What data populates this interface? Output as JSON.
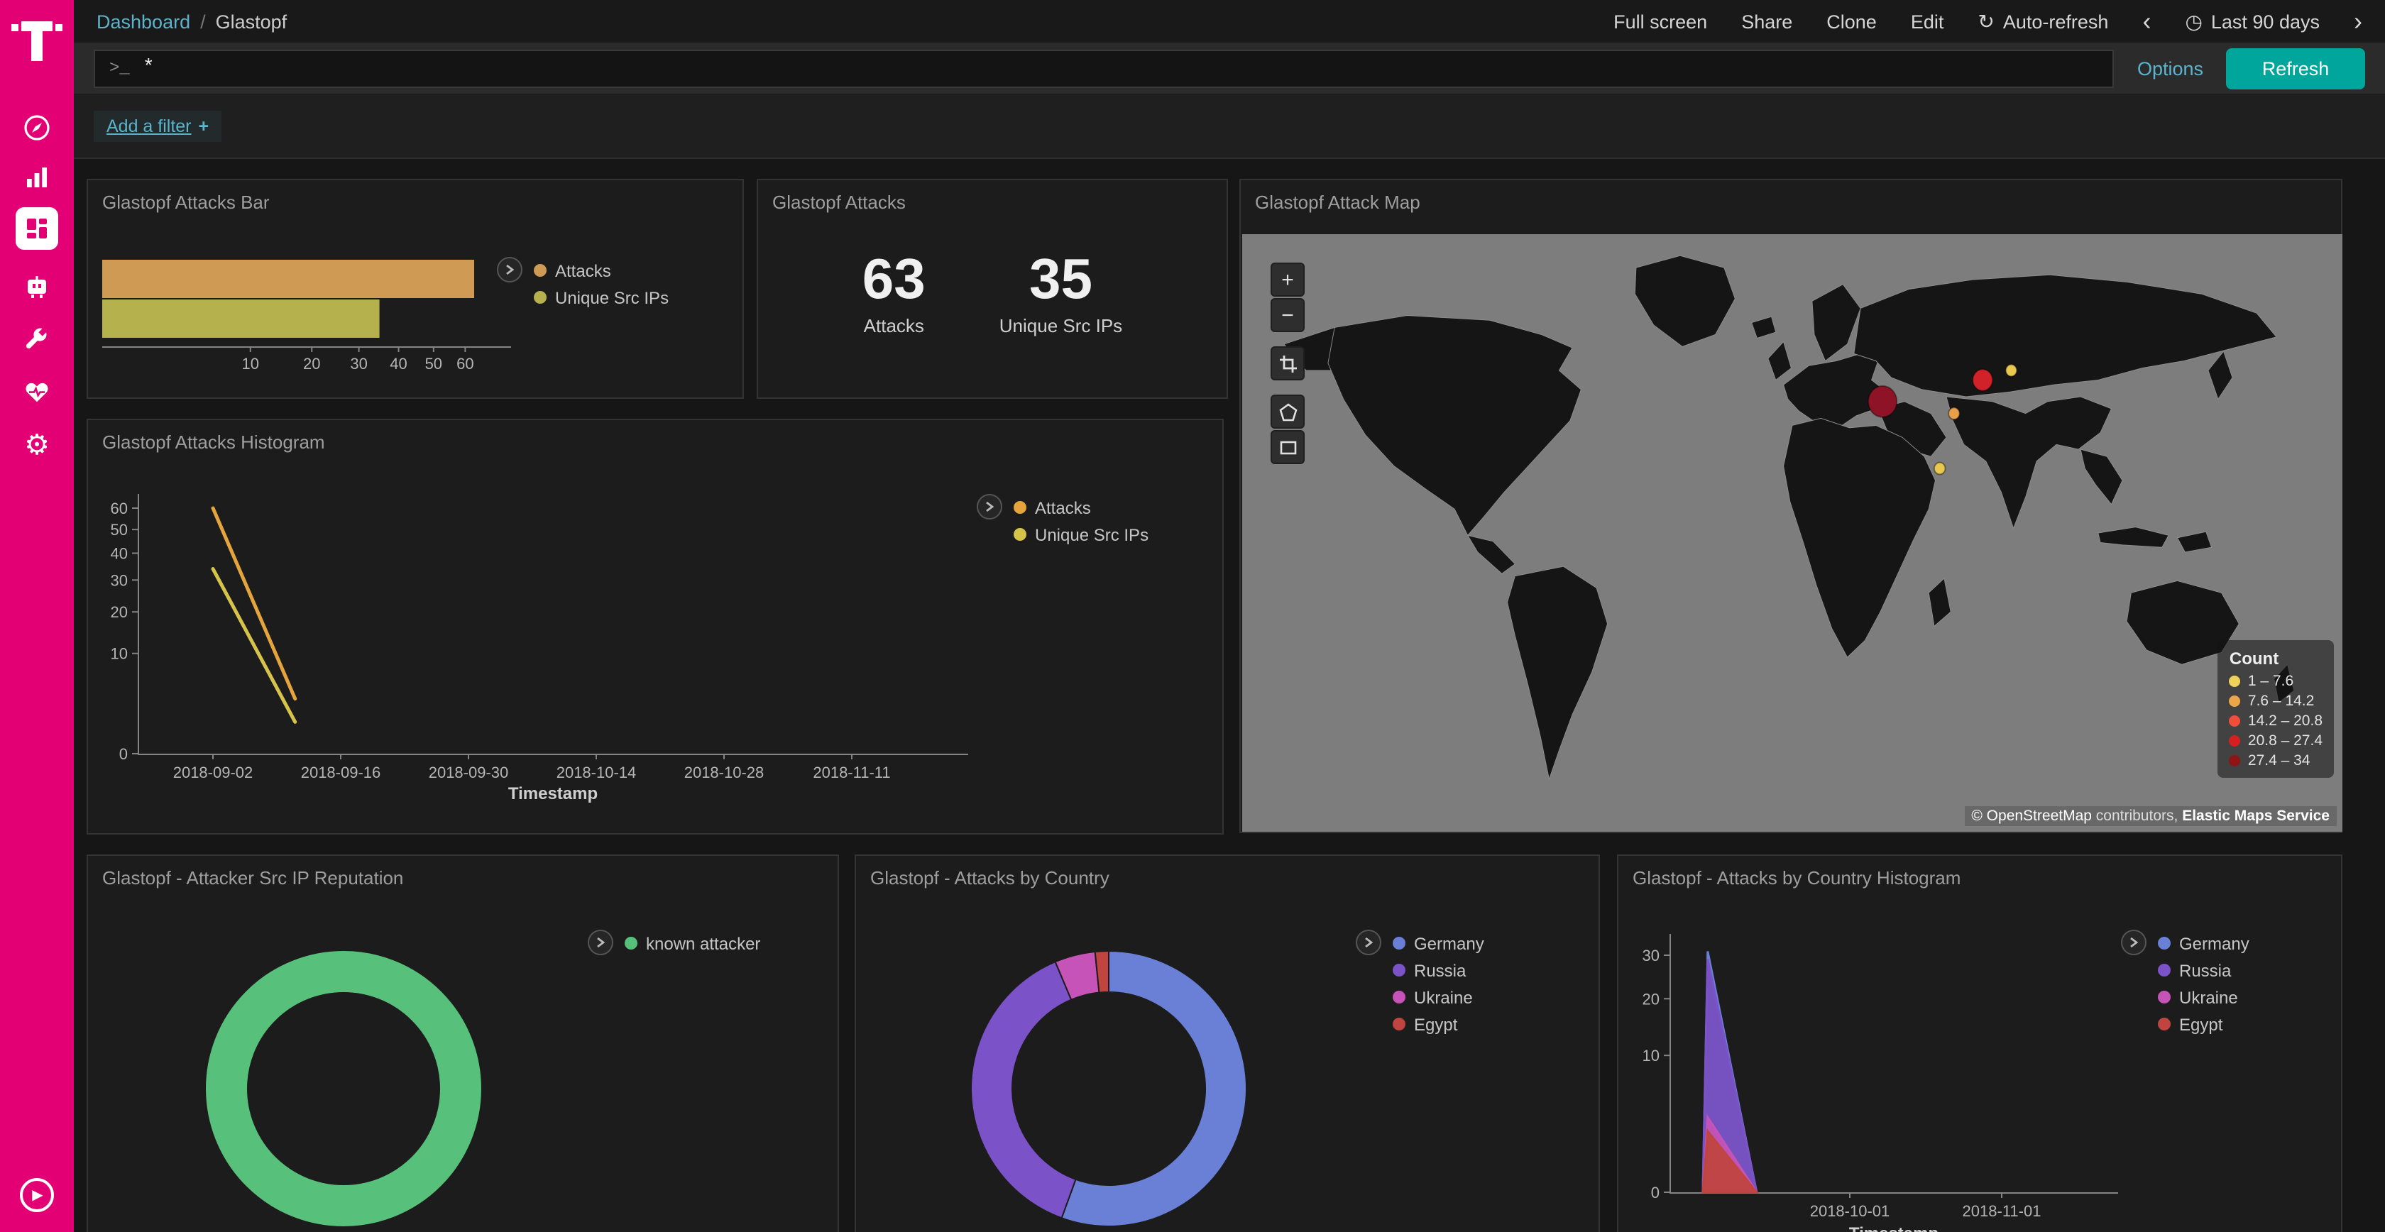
{
  "brand": {
    "magenta": "#e20074",
    "teal": "#00a69b",
    "link_blue": "#5bb3cc"
  },
  "icons": {
    "gear": "⚙",
    "refresh": "↻",
    "clock": "◷",
    "play": "▶",
    "chevron_left": "‹",
    "chevron_right": "›",
    "plus": "+",
    "minus": "−"
  },
  "sidebar": {
    "logo": "t-mobile-logo",
    "items": [
      "discover",
      "visualize",
      "dashboard-selected",
      "timelion",
      "dev-tools",
      "monitoring",
      "management"
    ]
  },
  "topnav": {
    "breadcrumb": {
      "root": "Dashboard",
      "separator": "/",
      "current": "Glastopf"
    },
    "actions": [
      {
        "label": "Full screen"
      },
      {
        "label": "Share"
      },
      {
        "label": "Clone"
      },
      {
        "label": "Edit"
      }
    ],
    "auto_refresh": {
      "label": "Auto-refresh"
    },
    "time_range": {
      "label": "Last 90 days"
    }
  },
  "query_bar": {
    "prompt": ">_",
    "value": "*",
    "options_label": "Options",
    "refresh_label": "Refresh"
  },
  "filter_bar": {
    "add_filter_label": "Add a filter",
    "plus": "+"
  },
  "panels": [
    {
      "title": "Glastopf Attacks Bar"
    },
    {
      "title": "Glastopf Attacks"
    },
    {
      "title": "Glastopf Attack Map"
    },
    {
      "title": "Glastopf Attacks Histogram"
    },
    {
      "title": "Glastopf - Attacker Src IP Reputation"
    },
    {
      "title": "Glastopf - Attacks by Country"
    },
    {
      "title": "Glastopf - Attacks by Country Histogram"
    }
  ],
  "chart_data": [
    {
      "type": "bar",
      "title": "Glastopf Attacks Bar",
      "orientation": "horizontal",
      "scale": "sqrt",
      "x_ticks": [
        10,
        20,
        30,
        40,
        50,
        60
      ],
      "x_max": 63,
      "series": [
        {
          "name": "Attacks",
          "value": 63,
          "color": "#cf9a53"
        },
        {
          "name": "Unique Src IPs",
          "value": 35,
          "color": "#b5b14d"
        }
      ]
    },
    {
      "type": "metric",
      "title": "Glastopf Attacks",
      "metrics": [
        {
          "value": "63",
          "label": "Attacks"
        },
        {
          "value": "35",
          "label": "Unique Src IPs"
        }
      ]
    },
    {
      "type": "map",
      "title": "Glastopf Attack Map",
      "legend_title": "Count",
      "legend": [
        {
          "range": "1 – 7.6",
          "color": "#efd25c"
        },
        {
          "range": "7.6 – 14.2",
          "color": "#eda54a"
        },
        {
          "range": "14.2 – 20.8",
          "color": "#f04d3a"
        },
        {
          "range": "20.8 – 27.4",
          "color": "#d62020"
        },
        {
          "range": "27.4 – 34",
          "color": "#8f1414"
        }
      ],
      "points": [
        {
          "x": 582,
          "y": 140,
          "r": 13,
          "color": "#8e1326"
        },
        {
          "x": 673,
          "y": 122,
          "r": 9,
          "color": "#d1222a"
        },
        {
          "x": 699,
          "y": 114,
          "r": 5,
          "color": "#e8c84e"
        },
        {
          "x": 647,
          "y": 150,
          "r": 5,
          "color": "#e8a04a"
        },
        {
          "x": 634,
          "y": 196,
          "r": 5,
          "color": "#e8c84e"
        }
      ],
      "attribution": {
        "link": "© OpenStreetMap",
        "middle": " contributors, ",
        "service": "Elastic Maps Service"
      }
    },
    {
      "type": "line",
      "title": "Glastopf Attacks Histogram",
      "xlabel": "Timestamp",
      "scale": "sqrt",
      "y_ticks": [
        0,
        10,
        20,
        30,
        40,
        50,
        60
      ],
      "y_max": 60,
      "x_ticks": [
        "2018-09-02",
        "2018-09-16",
        "2018-09-30",
        "2018-10-14",
        "2018-10-28",
        "2018-11-11"
      ],
      "series": [
        {
          "name": "Attacks",
          "color": "#e5a43c",
          "points": [
            {
              "date": "2018-09-02",
              "value": 60
            },
            {
              "date": "2018-09-11",
              "value": 3
            }
          ]
        },
        {
          "name": "Unique Src IPs",
          "color": "#d6c44a",
          "points": [
            {
              "date": "2018-09-02",
              "value": 34
            },
            {
              "date": "2018-09-11",
              "value": 1
            }
          ]
        }
      ]
    },
    {
      "type": "donut",
      "title": "Glastopf - Attacker Src IP Reputation",
      "slices": [
        {
          "label": "known attacker",
          "value": 1,
          "color": "#57c17b"
        }
      ]
    },
    {
      "type": "donut",
      "title": "Glastopf - Attacks by Country",
      "slices": [
        {
          "label": "Germany",
          "value": 35,
          "color": "#6a7fd6"
        },
        {
          "label": "Russia",
          "value": 24,
          "color": "#7b52c7"
        },
        {
          "label": "Ukraine",
          "value": 3,
          "color": "#c653b8"
        },
        {
          "label": "Egypt",
          "value": 1,
          "color": "#c0443f"
        }
      ]
    },
    {
      "type": "area",
      "title": "Glastopf - Attacks by Country Histogram",
      "xlabel": "Timestamp",
      "scale": "sqrt",
      "y_ticks": [
        0,
        10,
        20,
        30
      ],
      "y_max": 30,
      "x_ticks": [
        "2018-10-01",
        "2018-11-01"
      ],
      "series": [
        {
          "name": "Germany",
          "color": "#6a7fd6",
          "fill": "rgba(106,127,214,0.55)",
          "points": [
            {
              "date": "2018-09-01",
              "value": 0
            },
            {
              "date": "2018-09-02",
              "value": 31
            },
            {
              "date": "2018-09-12",
              "value": 0
            }
          ]
        },
        {
          "name": "Russia",
          "color": "#7b52c7",
          "fill": "rgba(123,82,199,0.9)",
          "points": [
            {
              "date": "2018-09-01",
              "value": 0
            },
            {
              "date": "2018-09-02",
              "value": 29
            },
            {
              "date": "2018-09-12",
              "value": 0
            }
          ]
        },
        {
          "name": "Ukraine",
          "color": "#c653b8",
          "fill": "rgba(198,83,184,0.9)",
          "points": [
            {
              "date": "2018-09-01",
              "value": 0
            },
            {
              "date": "2018-09-02",
              "value": 3
            },
            {
              "date": "2018-09-12",
              "value": 0
            }
          ]
        },
        {
          "name": "Egypt",
          "color": "#c0443f",
          "fill": "rgba(192,68,63,0.95)",
          "points": [
            {
              "date": "2018-09-01",
              "value": 0
            },
            {
              "date": "2018-09-02",
              "value": 2
            },
            {
              "date": "2018-09-12",
              "value": 0
            }
          ]
        }
      ]
    }
  ]
}
